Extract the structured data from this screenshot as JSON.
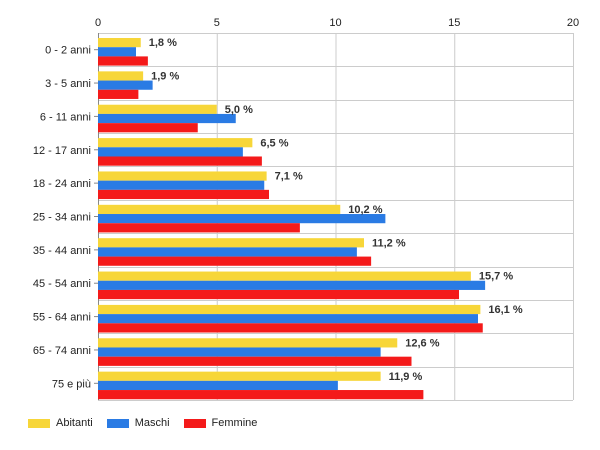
{
  "chart_data": {
    "type": "bar",
    "orientation": "horizontal",
    "categories": [
      "0 - 2 anni",
      "3 - 5 anni",
      "6 - 11 anni",
      "12 - 17 anni",
      "18 - 24 anni",
      "25 - 34 anni",
      "35 - 44 anni",
      "45 - 54 anni",
      "55 - 64 anni",
      "65 - 74 anni",
      "75 e più"
    ],
    "series": [
      {
        "name": "Abitanti",
        "color": "#f7d639",
        "values": [
          1.8,
          1.9,
          5.0,
          6.5,
          7.1,
          10.2,
          11.2,
          15.7,
          16.1,
          12.6,
          11.9
        ]
      },
      {
        "name": "Maschi",
        "color": "#2a7be4",
        "values": [
          1.6,
          2.3,
          5.8,
          6.1,
          7.0,
          12.1,
          10.9,
          16.3,
          16.0,
          11.9,
          10.1
        ]
      },
      {
        "name": "Femmine",
        "color": "#f41a1a",
        "values": [
          2.1,
          1.7,
          4.2,
          6.9,
          7.2,
          8.5,
          11.5,
          15.2,
          16.2,
          13.2,
          13.7
        ]
      }
    ],
    "data_labels": [
      "1,8 %",
      "1,9 %",
      "5,0 %",
      "6,5 %",
      "7,1 %",
      "10,2 %",
      "11,2 %",
      "15,7 %",
      "16,1 %",
      "12,6 %",
      "11,9 %"
    ],
    "x_ticks": [
      "0",
      "5",
      "10",
      "15",
      "20"
    ],
    "xlim": [
      0,
      20
    ],
    "grid": true,
    "legend_position": "bottom-left"
  }
}
